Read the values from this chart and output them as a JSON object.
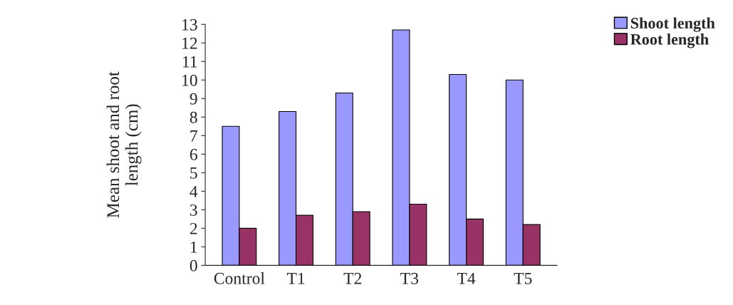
{
  "chart_data": {
    "type": "bar",
    "ylabel": "Mean shoot and root\nlength (cm)",
    "categories": [
      "Control",
      "T1",
      "T2",
      "T3",
      "T4",
      "T5"
    ],
    "series": [
      {
        "name": "Shoot length",
        "color": "#9999ff",
        "values": [
          7.5,
          8.3,
          9.3,
          12.7,
          10.3,
          10.0
        ]
      },
      {
        "name": "Root length",
        "color": "#993366",
        "values": [
          2.0,
          2.7,
          2.9,
          3.3,
          2.5,
          2.2
        ]
      }
    ],
    "ylim": [
      0,
      13
    ],
    "yticks": [
      0,
      1,
      2,
      3,
      4,
      5,
      6,
      7,
      8,
      9,
      10,
      11,
      12,
      13
    ],
    "grid": false,
    "legend": "top right"
  }
}
